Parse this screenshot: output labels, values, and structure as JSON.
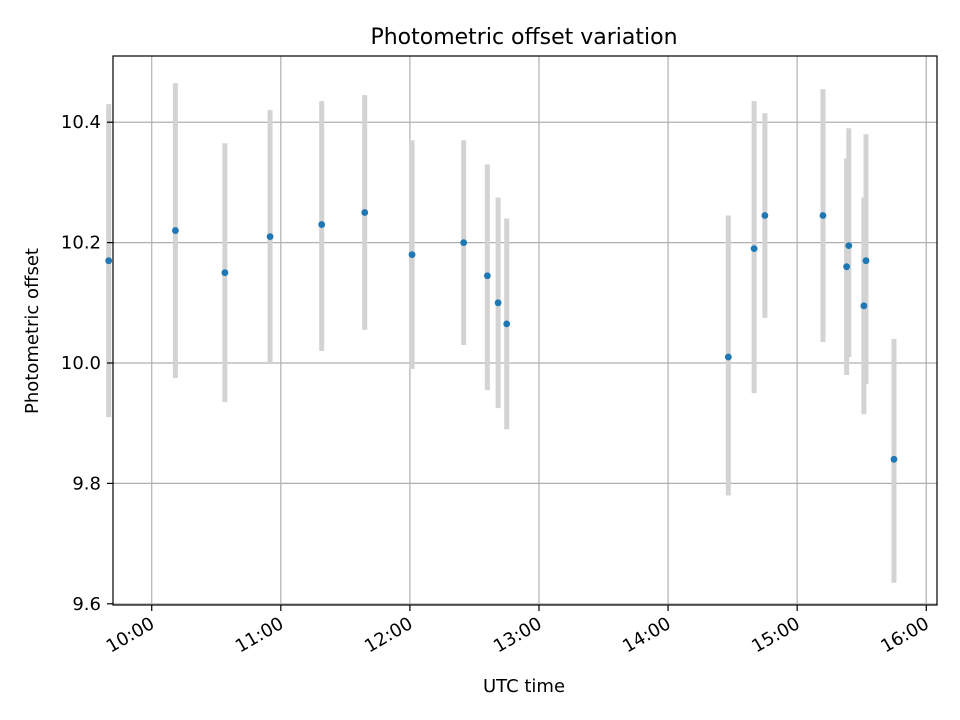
{
  "chart_data": {
    "type": "scatter",
    "title": "Photometric offset variation",
    "xlabel": "UTC time",
    "ylabel": "Photometric offset",
    "x_unit": "UTC time (HH:MM)",
    "xlim": [
      "09:42",
      "16:05"
    ],
    "ylim": [
      9.598,
      10.51
    ],
    "grid": true,
    "xticks": [
      "10:00",
      "11:00",
      "12:00",
      "13:00",
      "14:00",
      "15:00",
      "16:00"
    ],
    "yticks": [
      9.6,
      9.8,
      10.0,
      10.2,
      10.4
    ],
    "ytick_labels": [
      "9.6",
      "9.8",
      "10.0",
      "10.2",
      "10.4"
    ],
    "colors": {
      "points": "#1f77b4",
      "errorbars": "#d3d3d3",
      "grid": "#b0b0b0"
    },
    "points": [
      {
        "x": "09:40",
        "y": 10.17,
        "ylow": 9.91,
        "yhigh": 10.43
      },
      {
        "x": "10:11",
        "y": 10.22,
        "ylow": 9.975,
        "yhigh": 10.465
      },
      {
        "x": "10:34",
        "y": 10.15,
        "ylow": 9.935,
        "yhigh": 10.365
      },
      {
        "x": "10:55",
        "y": 10.21,
        "ylow": 10.0,
        "yhigh": 10.42
      },
      {
        "x": "11:19",
        "y": 10.23,
        "ylow": 10.02,
        "yhigh": 10.435
      },
      {
        "x": "11:39",
        "y": 10.25,
        "ylow": 10.055,
        "yhigh": 10.445
      },
      {
        "x": "12:01",
        "y": 10.18,
        "ylow": 9.99,
        "yhigh": 10.37
      },
      {
        "x": "12:25",
        "y": 10.2,
        "ylow": 10.03,
        "yhigh": 10.37
      },
      {
        "x": "12:36",
        "y": 10.145,
        "ylow": 9.955,
        "yhigh": 10.33
      },
      {
        "x": "12:41",
        "y": 10.1,
        "ylow": 9.925,
        "yhigh": 10.275
      },
      {
        "x": "12:45",
        "y": 10.065,
        "ylow": 9.89,
        "yhigh": 10.24
      },
      {
        "x": "14:28",
        "y": 10.01,
        "ylow": 9.78,
        "yhigh": 10.245
      },
      {
        "x": "14:40",
        "y": 10.19,
        "ylow": 9.95,
        "yhigh": 10.435
      },
      {
        "x": "14:45",
        "y": 10.245,
        "ylow": 10.075,
        "yhigh": 10.415
      },
      {
        "x": "15:12",
        "y": 10.245,
        "ylow": 10.035,
        "yhigh": 10.455
      },
      {
        "x": "15:23",
        "y": 10.16,
        "ylow": 9.98,
        "yhigh": 10.34
      },
      {
        "x": "15:24",
        "y": 10.195,
        "ylow": 10.01,
        "yhigh": 10.39
      },
      {
        "x": "15:31",
        "y": 10.095,
        "ylow": 9.915,
        "yhigh": 10.275
      },
      {
        "x": "15:32",
        "y": 10.17,
        "ylow": 9.965,
        "yhigh": 10.38
      },
      {
        "x": "15:45",
        "y": 9.84,
        "ylow": 9.635,
        "yhigh": 10.04
      }
    ]
  }
}
